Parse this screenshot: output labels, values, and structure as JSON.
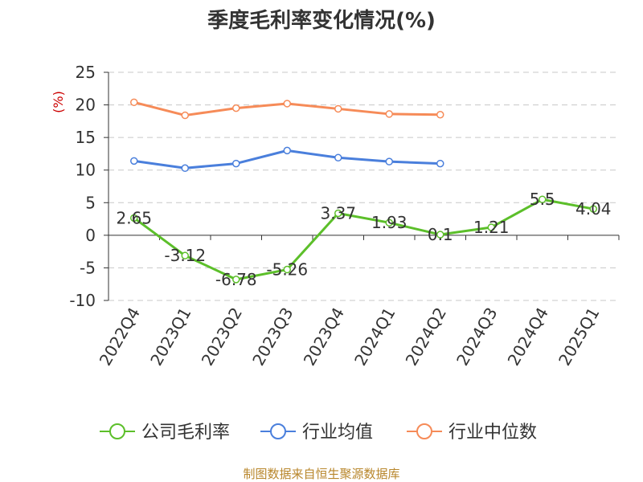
{
  "chart_data": {
    "type": "line",
    "title": "季度毛利率变化情况(%)",
    "ylabel": "(%)",
    "ylim": [
      -10,
      25
    ],
    "yticks": [
      -10,
      -5,
      0,
      5,
      10,
      15,
      20,
      25
    ],
    "grid": true,
    "categories": [
      "2022Q4",
      "2023Q1",
      "2023Q2",
      "2023Q3",
      "2023Q4",
      "2024Q1",
      "2024Q2",
      "2024Q3",
      "2024Q4",
      "2025Q1"
    ],
    "series": [
      {
        "name": "公司毛利率",
        "color": "#5cbf2a",
        "values": [
          2.65,
          -3.12,
          -6.78,
          -5.26,
          3.37,
          1.93,
          0.1,
          1.21,
          5.5,
          4.04
        ],
        "labels": [
          "2.65",
          "-3.12",
          "-6.78",
          "-5.26",
          "3.37",
          "1.93",
          "0.1",
          "1.21",
          "5.5",
          "4.04"
        ]
      },
      {
        "name": "行业均值",
        "color": "#4a7fdc",
        "values": [
          11.4,
          10.3,
          11.0,
          13.0,
          11.9,
          11.3,
          11.0,
          null,
          null,
          null
        ]
      },
      {
        "name": "行业中位数",
        "color": "#f68b58",
        "values": [
          20.4,
          18.4,
          19.5,
          20.2,
          19.4,
          18.6,
          18.5,
          null,
          null,
          null
        ]
      }
    ],
    "legend_position": "bottom",
    "source": "制图数据来自恒生聚源数据库"
  }
}
